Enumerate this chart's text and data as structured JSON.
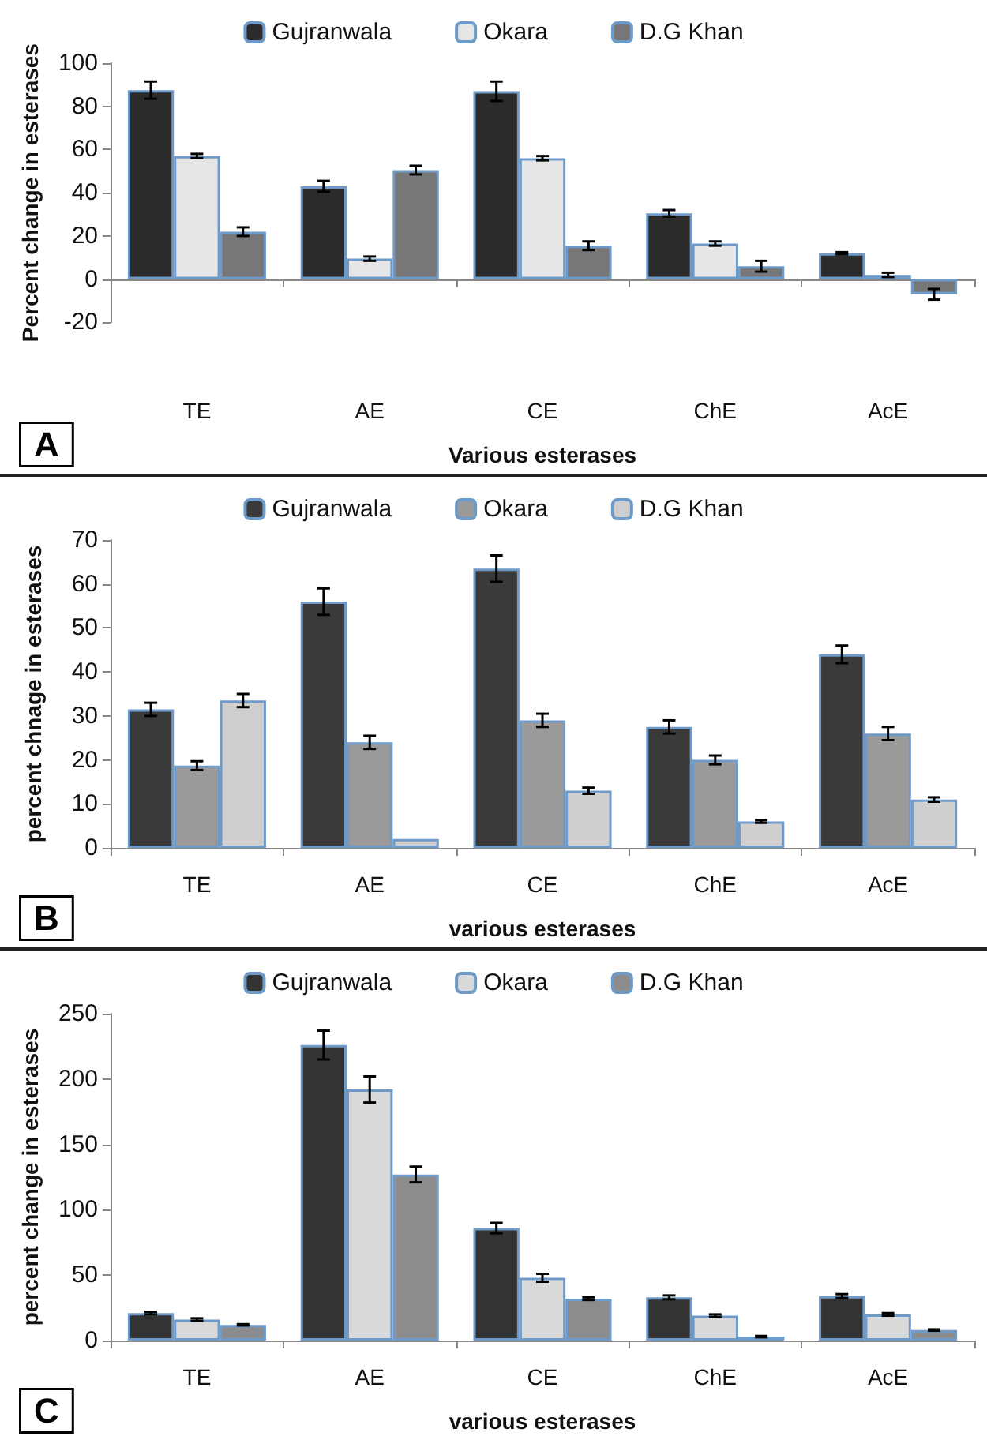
{
  "chart_data": [
    {
      "type": "bar",
      "xlabel": "Various esterases",
      "ylabel": "Percent change in esterases",
      "annotations": [
        "A"
      ],
      "categories": [
        "TE",
        "AE",
        "CE",
        "ChE",
        "AcE"
      ],
      "ylim": [
        -20,
        100
      ],
      "yticks": [
        -20,
        0,
        20,
        40,
        60,
        80,
        100
      ],
      "legend": "top",
      "series": [
        {
          "name": "Gujranwala",
          "color": "#2b2b2b",
          "values": [
            87.5,
            43,
            87,
            30.5,
            12
          ],
          "errors": [
            4,
            2.5,
            4.5,
            1.5,
            0.5
          ]
        },
        {
          "name": "Okara",
          "color": "#e6e6e6",
          "values": [
            57,
            9.5,
            56,
            16.5,
            2
          ],
          "errors": [
            1,
            1,
            1,
            1,
            1
          ]
        },
        {
          "name": "D.G Khan",
          "color": "#777777",
          "values": [
            22,
            50.5,
            15.5,
            6,
            -7
          ],
          "errors": [
            2,
            2,
            2,
            2.5,
            2.5
          ]
        }
      ]
    },
    {
      "type": "bar",
      "xlabel": "various esterases",
      "ylabel": "percent chnage in esterases",
      "annotations": [
        "B"
      ],
      "categories": [
        "TE",
        "AE",
        "CE",
        "ChE",
        "AcE"
      ],
      "ylim": [
        0,
        70
      ],
      "yticks": [
        0,
        10,
        20,
        30,
        40,
        50,
        60,
        70
      ],
      "legend": "top",
      "series": [
        {
          "name": "Gujranwala",
          "color": "#3a3a3a",
          "values": [
            31.5,
            56,
            63.5,
            27.5,
            44
          ],
          "errors": [
            1.5,
            3,
            3,
            1.5,
            2
          ]
        },
        {
          "name": "Okara",
          "color": "#9a9a9a",
          "values": [
            18.7,
            24,
            29,
            20,
            26
          ],
          "errors": [
            1,
            1.5,
            1.5,
            1,
            1.5
          ]
        },
        {
          "name": "D.G Khan",
          "color": "#cfcfcf",
          "values": [
            33.5,
            2,
            13,
            6,
            11
          ],
          "errors": [
            1.5,
            null,
            0.7,
            0.3,
            0.5
          ]
        }
      ]
    },
    {
      "type": "bar",
      "xlabel": "various esterases",
      "ylabel": "percent change in esterases",
      "annotations": [
        "C"
      ],
      "categories": [
        "TE",
        "AE",
        "CE",
        "ChE",
        "AcE"
      ],
      "ylim": [
        0,
        250
      ],
      "yticks": [
        0,
        50,
        100,
        150,
        200,
        250
      ],
      "legend": "top",
      "series": [
        {
          "name": "Gujranwala",
          "color": "#333333",
          "values": [
            21,
            226,
            86,
            33,
            34
          ],
          "errors": [
            1,
            11,
            4,
            1.5,
            1.5
          ]
        },
        {
          "name": "Okara",
          "color": "#d9d9d9",
          "values": [
            16,
            192,
            48,
            19,
            20
          ],
          "errors": [
            1,
            10,
            3,
            1,
            1
          ]
        },
        {
          "name": "D.G Khan",
          "color": "#8c8c8c",
          "values": [
            12,
            127,
            32,
            3,
            8
          ],
          "errors": [
            0.5,
            6,
            1,
            0.5,
            0.5
          ]
        }
      ]
    }
  ]
}
